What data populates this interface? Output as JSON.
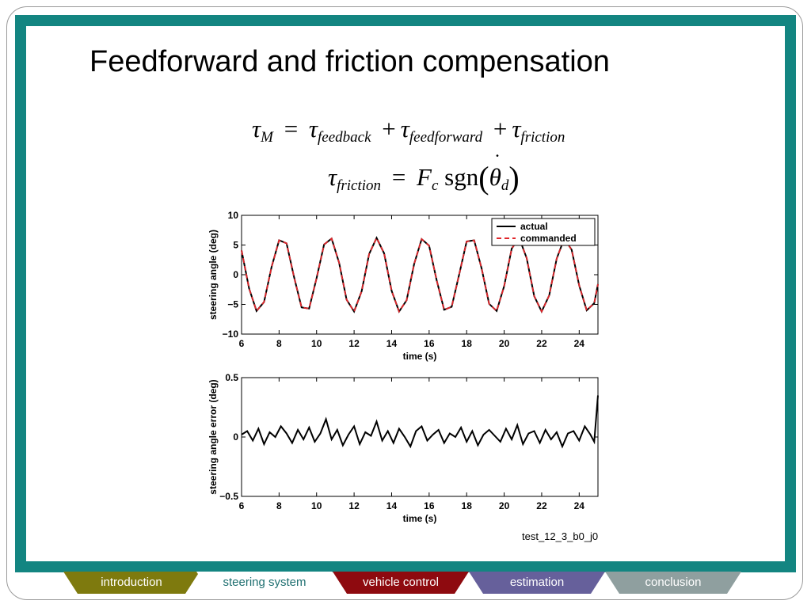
{
  "slide": {
    "title": "Feedforward and friction compensation",
    "equation1": {
      "tau": "τ",
      "sub_m": "M",
      "equals": "=",
      "sub_feedback": "feedback",
      "plus": "+",
      "sub_feedforward": "feedforward",
      "sub_friction": "friction"
    },
    "equation2": {
      "tau": "τ",
      "sub_friction": "friction",
      "equals": "=",
      "F": "F",
      "sub_c": "c",
      "sgn": "sgn",
      "open_paren": "(",
      "theta": "θ",
      "dot": "˙",
      "sub_d": "d",
      "close_paren": ")"
    },
    "caption": "test_12_3_b0_j0"
  },
  "chart_data": [
    {
      "type": "line",
      "xlabel": "time (s)",
      "ylabel": "steering angle (deg)",
      "xlim": [
        6,
        25
      ],
      "ylim": [
        -10,
        10
      ],
      "xticks": [
        "6",
        "8",
        "10",
        "12",
        "14",
        "16",
        "18",
        "20",
        "22",
        "24"
      ],
      "yticks": [
        "10",
        "5",
        "0",
        "−5",
        "−10"
      ],
      "legend_position": "top-right",
      "grid": false,
      "series": [
        {
          "name": "actual",
          "color": "#000000",
          "style": "solid",
          "x": [
            6.0,
            6.4,
            6.8,
            7.2,
            7.6,
            8.0,
            8.4,
            8.8,
            9.2,
            9.6,
            10.0,
            10.4,
            10.8,
            11.2,
            11.6,
            12.0,
            12.4,
            12.8,
            13.2,
            13.6,
            14.0,
            14.4,
            14.8,
            15.2,
            15.6,
            16.0,
            16.4,
            16.8,
            17.2,
            17.6,
            18.0,
            18.4,
            18.8,
            19.2,
            19.6,
            20.0,
            20.4,
            20.8,
            21.2,
            21.6,
            22.0,
            22.4,
            22.8,
            23.2,
            23.6,
            24.0,
            24.4,
            24.8,
            25.0
          ],
          "y": [
            4.1,
            -2.3,
            -6.1,
            -4.6,
            1.3,
            5.8,
            5.3,
            -0.4,
            -5.5,
            -5.7,
            -0.6,
            5.1,
            6.1,
            2.0,
            -4.2,
            -6.2,
            -2.8,
            3.5,
            6.2,
            3.6,
            -2.7,
            -6.2,
            -4.3,
            1.8,
            6.0,
            4.9,
            -0.9,
            -5.9,
            -5.4,
            0.0,
            5.6,
            5.8,
            1.0,
            -4.9,
            -6.1,
            -1.9,
            4.4,
            6.2,
            2.8,
            -3.6,
            -6.2,
            -3.5,
            2.7,
            6.1,
            4.2,
            -1.8,
            -6.0,
            -4.8,
            -1.6
          ]
        },
        {
          "name": "commanded",
          "color": "#e0262b",
          "style": "dashed",
          "x": [
            6.0,
            6.4,
            6.8,
            7.2,
            7.6,
            8.0,
            8.4,
            8.8,
            9.2,
            9.6,
            10.0,
            10.4,
            10.8,
            11.2,
            11.6,
            12.0,
            12.4,
            12.8,
            13.2,
            13.6,
            14.0,
            14.4,
            14.8,
            15.2,
            15.6,
            16.0,
            16.4,
            16.8,
            17.2,
            17.6,
            18.0,
            18.4,
            18.8,
            19.2,
            19.6,
            20.0,
            20.4,
            20.8,
            21.2,
            21.6,
            22.0,
            22.4,
            22.8,
            23.2,
            23.6,
            24.0,
            24.4,
            24.8,
            25.0
          ],
          "y": [
            4.1,
            -2.3,
            -6.1,
            -4.6,
            1.3,
            5.8,
            5.3,
            -0.4,
            -5.5,
            -5.7,
            -0.6,
            5.1,
            6.1,
            2.0,
            -4.2,
            -6.2,
            -2.8,
            3.5,
            6.2,
            3.6,
            -2.7,
            -6.2,
            -4.3,
            1.8,
            6.0,
            4.9,
            -0.9,
            -5.9,
            -5.4,
            0.0,
            5.6,
            5.8,
            1.0,
            -4.9,
            -6.1,
            -1.9,
            4.4,
            6.2,
            2.8,
            -3.6,
            -6.2,
            -3.5,
            2.7,
            6.1,
            4.2,
            -1.8,
            -6.0,
            -4.8,
            -1.6
          ]
        }
      ]
    },
    {
      "type": "line",
      "xlabel": "time (s)",
      "ylabel": "steering angle error (deg)",
      "xlim": [
        6,
        25
      ],
      "ylim": [
        -0.5,
        0.5
      ],
      "xticks": [
        "6",
        "8",
        "10",
        "12",
        "14",
        "16",
        "18",
        "20",
        "22",
        "24"
      ],
      "yticks": [
        "0.5",
        "0",
        "−0.5"
      ],
      "grid": false,
      "series": [
        {
          "color": "#000000",
          "x": [
            6.0,
            6.3,
            6.6,
            6.9,
            7.2,
            7.5,
            7.8,
            8.1,
            8.4,
            8.7,
            9.0,
            9.3,
            9.6,
            9.9,
            10.2,
            10.5,
            10.8,
            11.1,
            11.4,
            11.7,
            12.0,
            12.3,
            12.6,
            12.9,
            13.2,
            13.5,
            13.8,
            14.1,
            14.4,
            14.7,
            15.0,
            15.3,
            15.6,
            15.9,
            16.2,
            16.5,
            16.8,
            17.1,
            17.4,
            17.7,
            18.0,
            18.3,
            18.6,
            18.9,
            19.2,
            19.5,
            19.8,
            20.1,
            20.4,
            20.7,
            21.0,
            21.3,
            21.6,
            21.9,
            22.2,
            22.5,
            22.8,
            23.1,
            23.4,
            23.7,
            24.0,
            24.3,
            24.6,
            24.8,
            25.0
          ],
          "y": [
            0.02,
            0.05,
            -0.03,
            0.07,
            -0.06,
            0.04,
            0.0,
            0.09,
            0.03,
            -0.05,
            0.06,
            -0.02,
            0.08,
            -0.04,
            0.03,
            0.15,
            -0.02,
            0.06,
            -0.07,
            0.02,
            0.09,
            -0.06,
            0.04,
            0.01,
            0.13,
            -0.03,
            0.05,
            -0.05,
            0.07,
            0.0,
            -0.08,
            0.05,
            0.09,
            -0.03,
            0.02,
            0.06,
            -0.05,
            0.03,
            0.0,
            0.08,
            -0.04,
            0.05,
            -0.07,
            0.02,
            0.06,
            0.01,
            -0.04,
            0.07,
            -0.02,
            0.1,
            -0.06,
            0.03,
            0.05,
            -0.05,
            0.06,
            -0.02,
            0.04,
            -0.08,
            0.03,
            0.05,
            -0.03,
            0.09,
            0.02,
            -0.04,
            0.35
          ]
        }
      ]
    }
  ],
  "nav": {
    "tabs": [
      {
        "label": "introduction",
        "color": "#7e7a0e"
      },
      {
        "label": "steering system",
        "color": "#ffffff"
      },
      {
        "label": "vehicle control",
        "color": "#8e0a0f"
      },
      {
        "label": "estimation",
        "color": "#66609b"
      },
      {
        "label": "conclusion",
        "color": "#8f9f9f"
      }
    ]
  }
}
